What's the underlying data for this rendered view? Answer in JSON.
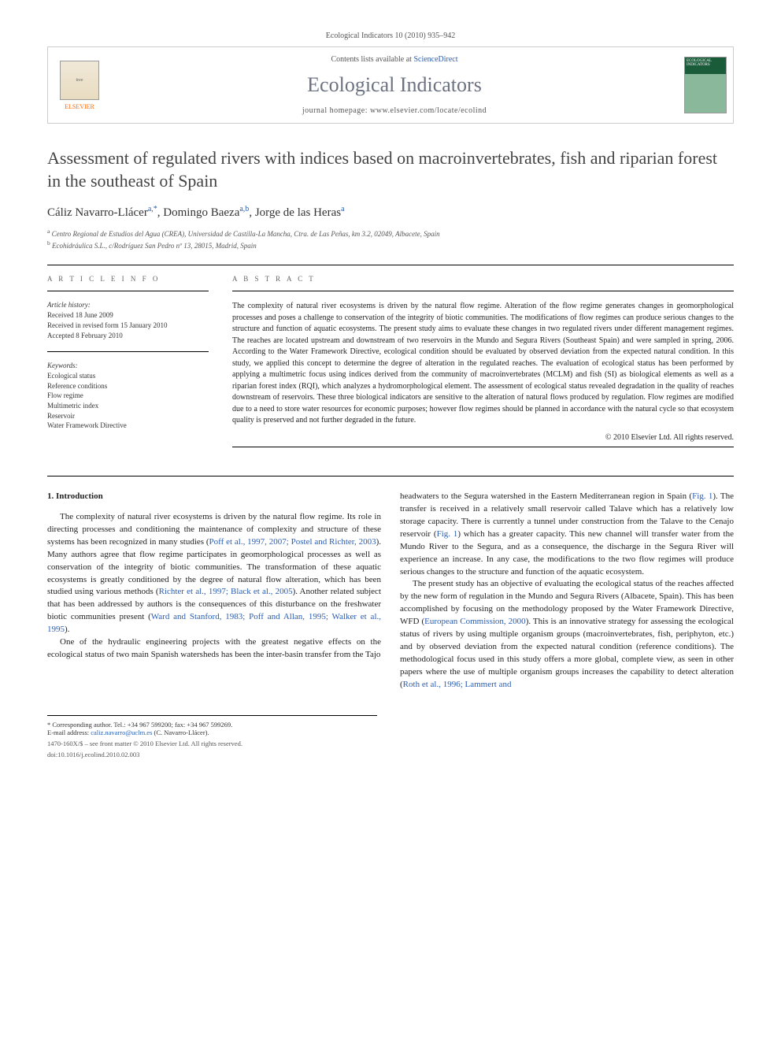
{
  "header": {
    "citation": "Ecological Indicators 10 (2010) 935–942",
    "contents_prefix": "Contents lists available at ",
    "contents_link": "ScienceDirect",
    "journal_name": "Ecological Indicators",
    "homepage_prefix": "journal homepage: ",
    "homepage_url": "www.elsevier.com/locate/ecolind",
    "elsevier_label": "ELSEVIER",
    "cover_label": "ECOLOGICAL INDICATORS"
  },
  "title": "Assessment of regulated rivers with indices based on macroinvertebrates, fish and riparian forest in the southeast of Spain",
  "authors_html": "Cáliz Navarro-Llácer<sup>a,*</sup>, Domingo Baeza<sup>a,b</sup>, Jorge de las Heras<sup>a</sup>",
  "affiliations": {
    "a": "Centro Regional de Estudios del Agua (CREA), Universidad de Castilla-La Mancha, Ctra. de Las Peñas, km 3.2, 02049, Albacete, Spain",
    "b": "Ecohidráulica S.L., c/Rodríguez San Pedro nº 13, 28015, Madrid, Spain"
  },
  "article_info": {
    "heading": "A R T I C L E   I N F O",
    "history_label": "Article history:",
    "history": [
      "Received 18 June 2009",
      "Received in revised form 15 January 2010",
      "Accepted 8 February 2010"
    ],
    "keywords_label": "Keywords:",
    "keywords": [
      "Ecological status",
      "Reference conditions",
      "Flow regime",
      "Multimetric index",
      "Reservoir",
      "Water Framework Directive"
    ]
  },
  "abstract": {
    "heading": "A B S T R A C T",
    "text": "The complexity of natural river ecosystems is driven by the natural flow regime. Alteration of the flow regime generates changes in geomorphological processes and poses a challenge to conservation of the integrity of biotic communities. The modifications of flow regimes can produce serious changes to the structure and function of aquatic ecosystems. The present study aims to evaluate these changes in two regulated rivers under different management regimes. The reaches are located upstream and downstream of two reservoirs in the Mundo and Segura Rivers (Southeast Spain) and were sampled in spring, 2006. According to the Water Framework Directive, ecological condition should be evaluated by observed deviation from the expected natural condition. In this study, we applied this concept to determine the degree of alteration in the regulated reaches. The evaluation of ecological status has been performed by applying a multimetric focus using indices derived from the community of macroinvertebrates (MCLM) and fish (SI) as biological elements as well as a riparian forest index (RQI), which analyzes a hydromorphological element. The assessment of ecological status revealed degradation in the quality of reaches downstream of reservoirs. These three biological indicators are sensitive to the alteration of natural flows produced by regulation. Flow regimes are modified due to a need to store water resources for economic purposes; however flow regimes should be planned in accordance with the natural cycle so that ecosystem quality is preserved and not further degraded in the future.",
    "copyright": "© 2010 Elsevier Ltd. All rights reserved."
  },
  "body": {
    "section_number": "1.",
    "section_title": "Introduction",
    "col1": {
      "p1_a": "The complexity of natural river ecosystems is driven by the natural flow regime. Its role in directing processes and conditioning the maintenance of complexity and structure of these systems has been recognized in many studies (",
      "p1_ref1": "Poff et al., 1997, 2007; Postel and Richter, 2003",
      "p1_b": "). Many authors agree that flow regime participates in geomorphological processes as well as conservation of the integrity of biotic communities. The transformation of these aquatic ecosystems is greatly conditioned by the degree of natural flow alteration, which has been studied using various methods (",
      "p1_ref2": "Richter et al., 1997; Black et al., 2005",
      "p1_c": "). Another related subject that has been addressed by authors is the consequences of this disturbance on the freshwater biotic communities present (",
      "p1_ref3": "Ward and Stanford, 1983; Poff and Allan, 1995; Walker et al., 1995",
      "p1_d": ").",
      "p2": "One of the hydraulic engineering projects with the greatest negative effects on the ecological status of two main Spanish watersheds has been the inter-basin transfer from the Tajo"
    },
    "col2": {
      "p1_a": "headwaters to the Segura watershed in the Eastern Mediterranean region in Spain (",
      "p1_ref1": "Fig. 1",
      "p1_b": "). The transfer is received in a relatively small reservoir called Talave which has a relatively low storage capacity. There is currently a tunnel under construction from the Talave to the Cenajo reservoir (",
      "p1_ref2": "Fig. 1",
      "p1_c": ") which has a greater capacity. This new channel will transfer water from the Mundo River to the Segura, and as a consequence, the discharge in the Segura River will experience an increase. In any case, the modifications to the two flow regimes will produce serious changes to the structure and function of the aquatic ecosystem.",
      "p2_a": "The present study has an objective of evaluating the ecological status of the reaches affected by the new form of regulation in the Mundo and Segura Rivers (Albacete, Spain). This has been accomplished by focusing on the methodology proposed by the Water Framework Directive, WFD (",
      "p2_ref1": "European Commission, 2000",
      "p2_b": "). This is an innovative strategy for assessing the ecological status of rivers by using multiple organism groups (macroinvertebrates, fish, periphyton, etc.) and by observed deviation from the expected natural condition (reference conditions). The methodological focus used in this study offers a more global, complete view, as seen in other papers where the use of multiple organism groups increases the capability to detect alteration (",
      "p2_ref2": "Roth et al., 1996; Lammert and"
    }
  },
  "footnotes": {
    "corr_label": "* Corresponding author. Tel.: +34 967 599200; fax: +34 967 599269.",
    "email_label": "E-mail address: ",
    "email": "caliz.navarro@uclm.es",
    "email_suffix": " (C. Navarro-Llácer)."
  },
  "footer": {
    "line1": "1470-160X/$ – see front matter © 2010 Elsevier Ltd. All rights reserved.",
    "line2": "doi:10.1016/j.ecolind.2010.02.003"
  },
  "colors": {
    "link": "#2a5db0",
    "elsevier_orange": "#ff6600",
    "journal_grey": "#6b7280"
  }
}
